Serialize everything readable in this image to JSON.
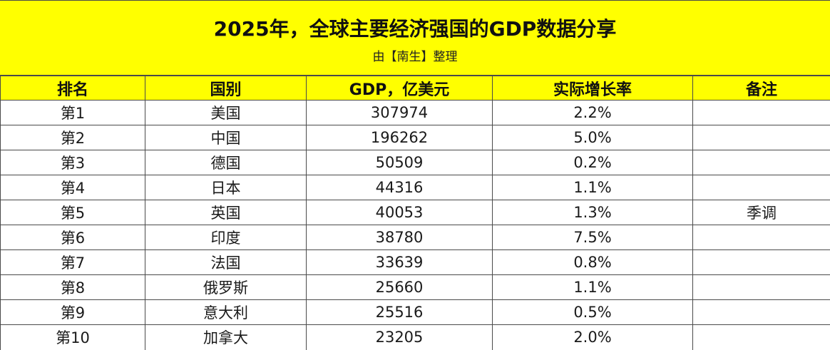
{
  "title": "2025年，全球主要经济强国的GDP数据分享",
  "subtitle": "由【南生】整理",
  "columns": [
    "排名",
    "国别",
    "GDP，亿美元",
    "实际增长率",
    "备注"
  ],
  "rows": [
    {
      "rank": "第1",
      "country": "美国",
      "gdp": "307974",
      "growth": "2.2%",
      "note": ""
    },
    {
      "rank": "第2",
      "country": "中国",
      "gdp": "196262",
      "growth": "5.0%",
      "note": ""
    },
    {
      "rank": "第3",
      "country": "德国",
      "gdp": "50509",
      "growth": "0.2%",
      "note": ""
    },
    {
      "rank": "第4",
      "country": "日本",
      "gdp": "44316",
      "growth": "1.1%",
      "note": ""
    },
    {
      "rank": "第5",
      "country": "英国",
      "gdp": "40053",
      "growth": "1.3%",
      "note": "季调"
    },
    {
      "rank": "第6",
      "country": "印度",
      "gdp": "38780",
      "growth": "7.5%",
      "note": ""
    },
    {
      "rank": "第7",
      "country": "法国",
      "gdp": "33639",
      "growth": "0.8%",
      "note": ""
    },
    {
      "rank": "第8",
      "country": "俄罗斯",
      "gdp": "25660",
      "growth": "1.1%",
      "note": ""
    },
    {
      "rank": "第9",
      "country": "意大利",
      "gdp": "25516",
      "growth": "0.5%",
      "note": ""
    },
    {
      "rank": "第10",
      "country": "加拿大",
      "gdp": "23205",
      "growth": "2.0%",
      "note": ""
    }
  ],
  "colors": {
    "header_bg": "#ffff00",
    "border": "#4a4a4a"
  }
}
